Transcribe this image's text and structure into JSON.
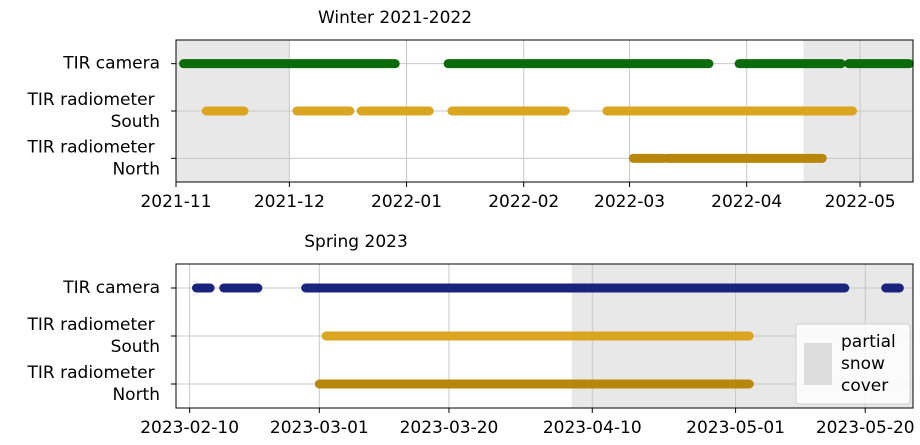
{
  "chart_data": [
    {
      "type": "timeline",
      "title": "Winter 2021-2022",
      "categories": [
        "TIR camera",
        "TIR radiometer\nSouth",
        "TIR radiometer\nNorth"
      ],
      "series": [
        {
          "color": "#0b6b0b",
          "segments": [
            [
              "2021-11-03",
              "2021-12-29"
            ],
            [
              "2022-01-12",
              "2022-03-22"
            ],
            [
              "2022-03-30",
              "2022-04-26"
            ],
            [
              "2022-04-28",
              "2022-05-14"
            ]
          ]
        },
        {
          "color": "#daa520",
          "segments": [
            [
              "2021-11-09",
              "2021-11-19"
            ],
            [
              "2021-12-03",
              "2021-12-17"
            ],
            [
              "2021-12-20",
              "2022-01-07"
            ],
            [
              "2022-01-13",
              "2022-02-12"
            ],
            [
              "2022-02-23",
              "2022-04-29"
            ]
          ]
        },
        {
          "color": "#b8860b",
          "segments": [
            [
              "2022-03-02",
              "2022-03-10"
            ],
            [
              "2022-03-11",
              "2022-04-21"
            ]
          ]
        }
      ],
      "shaded_spans": [
        [
          "2021-11-01",
          "2021-12-01"
        ],
        [
          "2022-04-16",
          "2022-05-15"
        ]
      ],
      "shade_color": "#e8e8e8",
      "xlim": [
        "2021-11-01",
        "2022-05-15"
      ],
      "xticks": [
        "2021-11",
        "2021-12",
        "2022-01",
        "2022-02",
        "2022-03",
        "2022-04",
        "2022-05"
      ],
      "grid": true
    },
    {
      "type": "timeline",
      "title": "Spring 2023",
      "categories": [
        "TIR camera",
        "TIR radiometer\nSouth",
        "TIR radiometer\nNorth"
      ],
      "series": [
        {
          "color": "#1a237e",
          "segments": [
            [
              "2023-02-11",
              "2023-02-13"
            ],
            [
              "2023-02-15",
              "2023-02-20"
            ],
            [
              "2023-02-27",
              "2023-05-17"
            ],
            [
              "2023-05-23",
              "2023-05-25"
            ]
          ]
        },
        {
          "color": "#daa520",
          "segments": [
            [
              "2023-03-02",
              "2023-05-03"
            ]
          ]
        },
        {
          "color": "#b8860b",
          "segments": [
            [
              "2023-03-01",
              "2023-05-03"
            ]
          ]
        }
      ],
      "shaded_spans": [
        [
          "2023-04-07",
          "2023-05-27"
        ]
      ],
      "shade_color": "#e8e8e8",
      "legend": {
        "label": "partial\nsnow\ncover",
        "loc": "lower right"
      },
      "xlim": [
        "2023-02-08",
        "2023-05-27"
      ],
      "xticks": [
        "2023-02-10",
        "2023-03-01",
        "2023-03-20",
        "2023-04-10",
        "2023-05-01",
        "2023-05-20"
      ],
      "grid": true
    }
  ]
}
